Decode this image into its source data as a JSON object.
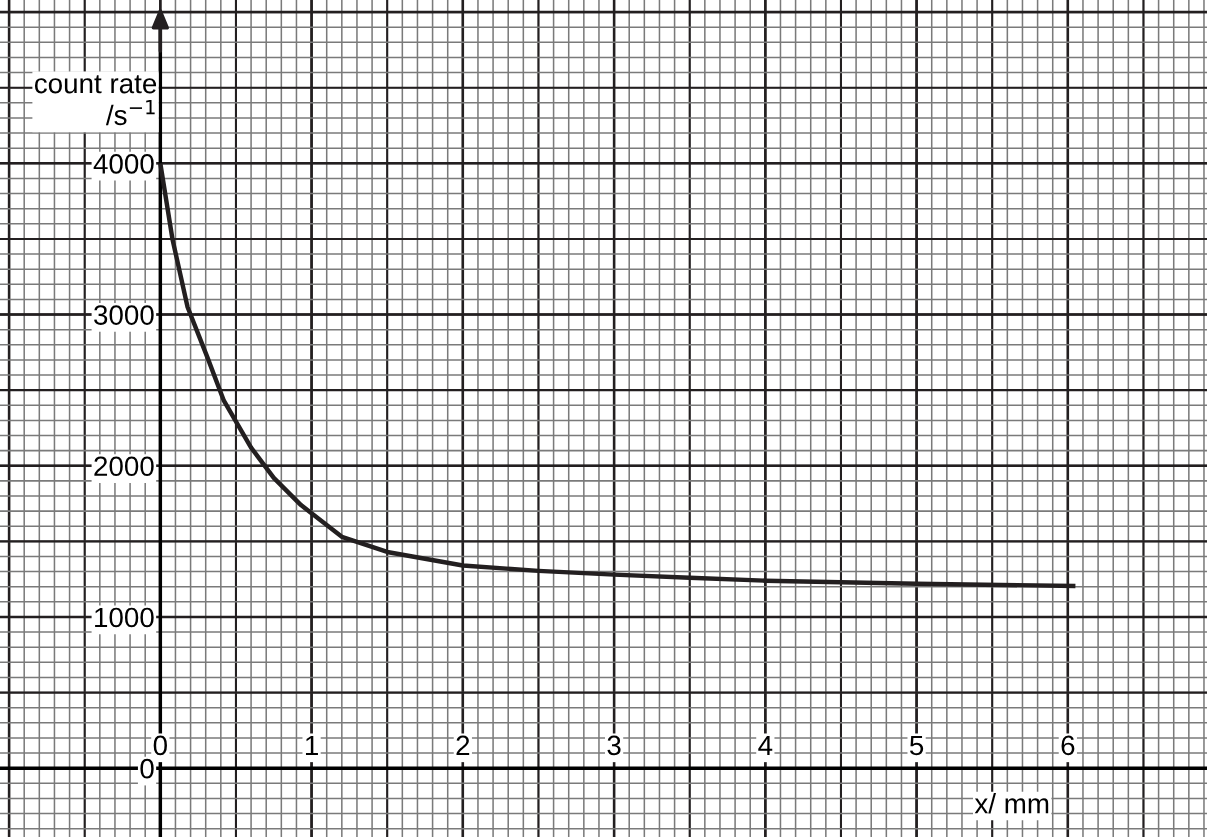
{
  "chart_data": {
    "type": "line",
    "xlabel": "x/ mm",
    "ylabel": "count rate\n/s$^{−1}$",
    "xlim": [
      -1.06,
      6.92
    ],
    "ylim": [
      -455,
      5080
    ],
    "xticks": [
      0,
      1,
      2,
      3,
      4,
      5,
      6
    ],
    "yticks": [
      0,
      1000,
      2000,
      3000,
      4000
    ],
    "grid": true,
    "marker": "none",
    "line_style": "solid",
    "series": [
      {
        "color": "#231f20",
        "x": [
          0,
          0.08,
          0.18,
          0.31,
          0.42,
          0.6,
          0.75,
          0.93,
          1.2,
          1.5,
          2.0,
          2.5,
          3.0,
          3.5,
          4.0,
          5.0,
          6.05
        ],
        "values": [
          4000,
          3500,
          3050,
          2720,
          2430,
          2120,
          1920,
          1740,
          1530,
          1430,
          1340,
          1305,
          1280,
          1260,
          1240,
          1220,
          1205
        ]
      }
    ]
  }
}
